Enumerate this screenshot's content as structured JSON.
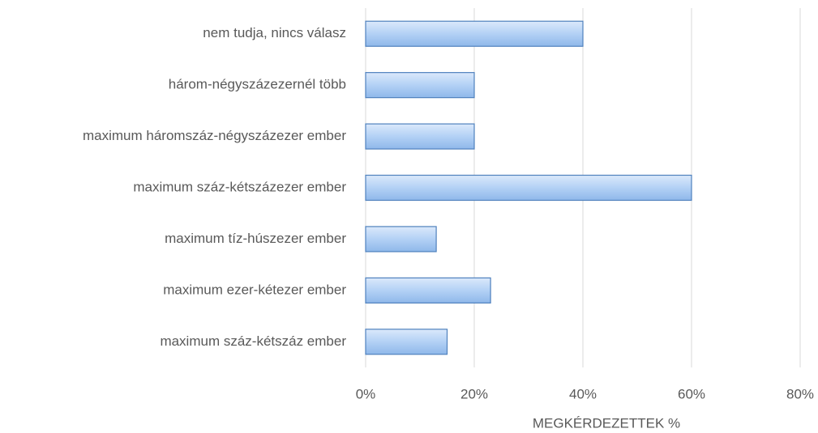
{
  "chart_data": {
    "type": "bar",
    "orientation": "horizontal",
    "x_label": "MEGKÉRDEZETTEK %",
    "categories": [
      "nem tudja, nincs válasz",
      "három-négyszázezernél több",
      "maximum háromszáz-négyszázezer ember",
      "maximum száz-kétszázezer ember",
      "maximum tíz-húszezer ember",
      "maximum ezer-kétezer ember",
      "maximum száz-kétszáz ember"
    ],
    "values": [
      40,
      20,
      20,
      60,
      13,
      23,
      15
    ],
    "color": "#9cc3f0",
    "xlim": [
      0,
      80
    ],
    "xticks": [
      {
        "value": 0,
        "label": "0%"
      },
      {
        "value": 20,
        "label": "20%"
      },
      {
        "value": 40,
        "label": "40%"
      },
      {
        "value": 60,
        "label": "60%"
      },
      {
        "value": 80,
        "label": "80%"
      }
    ],
    "grid": true
  }
}
